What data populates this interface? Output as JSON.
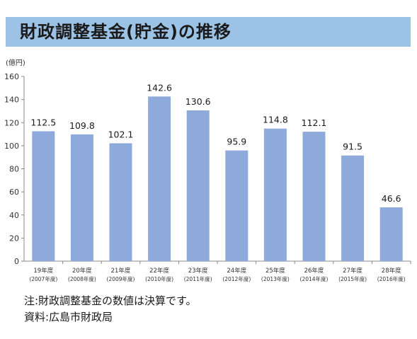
{
  "title": "財政調整基金(貯金)の推移",
  "unit_label": "(億円)",
  "notes": {
    "note": "注:財政調整基金の数値は決算です。",
    "source": "資料:広島市財政局"
  },
  "chart_data": {
    "type": "bar",
    "title": "財政調整基金(貯金)の推移",
    "ylabel": "(億円)",
    "xlabel": "",
    "ylim": [
      0,
      160
    ],
    "yticks": [
      0,
      20,
      40,
      60,
      80,
      100,
      120,
      140,
      160
    ],
    "grid": false,
    "bar_color": "#8eaadb",
    "categories": [
      {
        "line1": "19年度",
        "line2": "(2007年度)"
      },
      {
        "line1": "20年度",
        "line2": "(2008年度)"
      },
      {
        "line1": "21年度",
        "line2": "(2009年度)"
      },
      {
        "line1": "22年度",
        "line2": "(2010年度)"
      },
      {
        "line1": "23年度",
        "line2": "(2011年度)"
      },
      {
        "line1": "24年度",
        "line2": "(2012年度)"
      },
      {
        "line1": "25年度",
        "line2": "(2013年度)"
      },
      {
        "line1": "26年度",
        "line2": "(2014年度)"
      },
      {
        "line1": "27年度",
        "line2": "(2015年度)"
      },
      {
        "line1": "28年度",
        "line2": "(2016年度)"
      }
    ],
    "values": [
      112.5,
      109.8,
      102.1,
      142.6,
      130.6,
      95.9,
      114.8,
      112.1,
      91.5,
      46.6
    ],
    "value_labels": [
      "112.5",
      "109.8",
      "102.1",
      "142.6",
      "130.6",
      "95.9",
      "114.8",
      "112.1",
      "91.5",
      "46.6"
    ]
  }
}
